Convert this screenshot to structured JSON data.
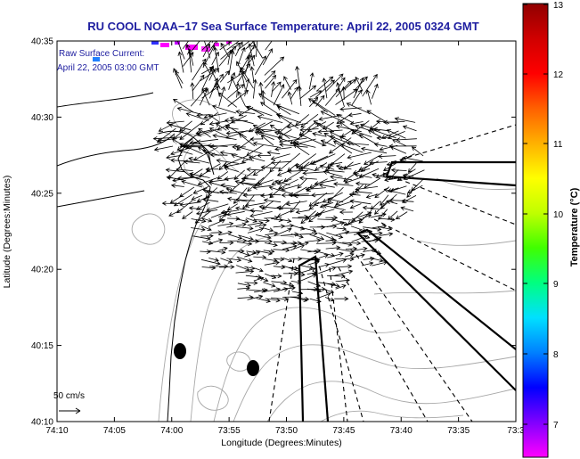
{
  "title": "RU COOL  NOAA−17  Sea Surface Temperature:  April 22, 2005 0324 GMT",
  "annotation": {
    "line1": "Raw Surface Current:",
    "line2": "April 22, 2005 03:00 GMT"
  },
  "axes": {
    "xlabel": "Longitude (Degrees:Minutes)",
    "ylabel": "Latitude (Degrees:Minutes)",
    "x_ticks": [
      "74:10",
      "74:05",
      "74:00",
      "73:55",
      "73:50",
      "73:45",
      "73:40",
      "73:35",
      "73:3"
    ],
    "y_ticks": [
      "40:35",
      "40:30",
      "40:25",
      "40:20",
      "40:15",
      "40:10"
    ]
  },
  "scale_label": "50 cm/s",
  "colorbar": {
    "label": "Temperature (°C)",
    "ticks": [
      "13",
      "12",
      "11",
      "10",
      "9",
      "8",
      "7"
    ],
    "stops": [
      "#ff00ff",
      "#8000ff",
      "#0000ff",
      "#0080ff",
      "#00e0ff",
      "#00ff80",
      "#40ff00",
      "#c0ff00",
      "#ffff00",
      "#ffb000",
      "#ff6000",
      "#ff0000",
      "#d00000",
      "#900000"
    ]
  },
  "colors": {
    "title": "#1e1ea0",
    "land_mask": "#ffffff",
    "vector": "#000000",
    "bathymetry": "#a8a8a8"
  }
}
